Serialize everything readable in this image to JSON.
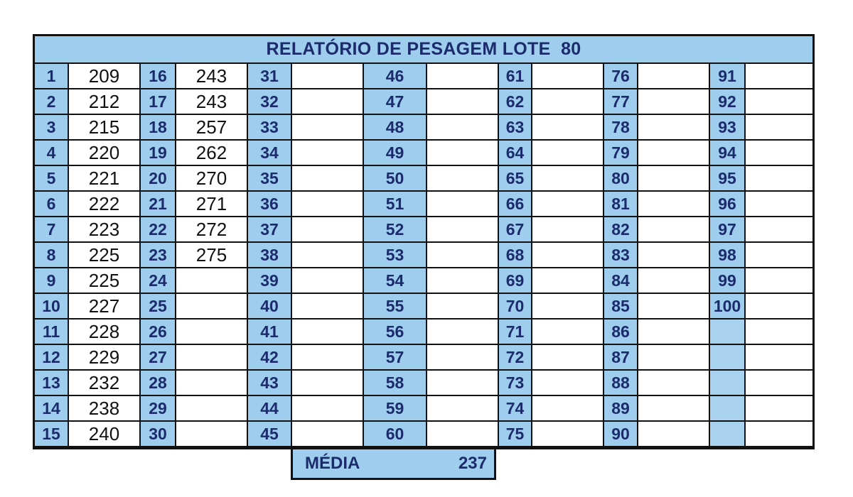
{
  "report": {
    "title": "RELATÓRIO DE PESAGEM LOTE  80",
    "media_label": "MÉDIA",
    "media_value": "237"
  },
  "grid": {
    "columns": [
      {
        "numbers": [
          "1",
          "2",
          "3",
          "4",
          "5",
          "6",
          "7",
          "8",
          "9",
          "10",
          "11",
          "12",
          "13",
          "14",
          "15"
        ],
        "weights": [
          "209",
          "212",
          "215",
          "220",
          "221",
          "222",
          "223",
          "225",
          "225",
          "227",
          "228",
          "229",
          "232",
          "238",
          "240"
        ]
      },
      {
        "numbers": [
          "16",
          "17",
          "18",
          "19",
          "20",
          "21",
          "22",
          "23",
          "24",
          "25",
          "26",
          "27",
          "28",
          "29",
          "30"
        ],
        "weights": [
          "243",
          "243",
          "257",
          "262",
          "270",
          "271",
          "272",
          "275",
          "",
          "",
          "",
          "",
          "",
          "",
          ""
        ]
      },
      {
        "numbers": [
          "31",
          "32",
          "33",
          "34",
          "35",
          "36",
          "37",
          "38",
          "39",
          "40",
          "41",
          "42",
          "43",
          "44",
          "45"
        ],
        "weights": [
          "",
          "",
          "",
          "",
          "",
          "",
          "",
          "",
          "",
          "",
          "",
          "",
          "",
          "",
          ""
        ]
      },
      {
        "numbers": [
          "46",
          "47",
          "48",
          "49",
          "50",
          "51",
          "52",
          "53",
          "54",
          "55",
          "56",
          "57",
          "58",
          "59",
          "60"
        ],
        "weights": [
          "",
          "",
          "",
          "",
          "",
          "",
          "",
          "",
          "",
          "",
          "",
          "",
          "",
          "",
          ""
        ]
      },
      {
        "numbers": [
          "61",
          "62",
          "63",
          "64",
          "65",
          "66",
          "67",
          "68",
          "69",
          "70",
          "71",
          "72",
          "73",
          "74",
          "75"
        ],
        "weights": [
          "",
          "",
          "",
          "",
          "",
          "",
          "",
          "",
          "",
          "",
          "",
          "",
          "",
          "",
          ""
        ]
      },
      {
        "numbers": [
          "76",
          "77",
          "78",
          "79",
          "80",
          "81",
          "82",
          "83",
          "84",
          "85",
          "86",
          "87",
          "88",
          "89",
          "90"
        ],
        "weights": [
          "",
          "",
          "",
          "",
          "",
          "",
          "",
          "",
          "",
          "",
          "",
          "",
          "",
          "",
          ""
        ]
      },
      {
        "numbers": [
          "91",
          "92",
          "93",
          "94",
          "95",
          "96",
          "97",
          "98",
          "99",
          "100",
          "",
          "",
          "",
          "",
          ""
        ],
        "weights": [
          "",
          "",
          "",
          "",
          "",
          "",
          "",
          "",
          "",
          "",
          "",
          "",
          "",
          "",
          ""
        ]
      }
    ]
  }
}
